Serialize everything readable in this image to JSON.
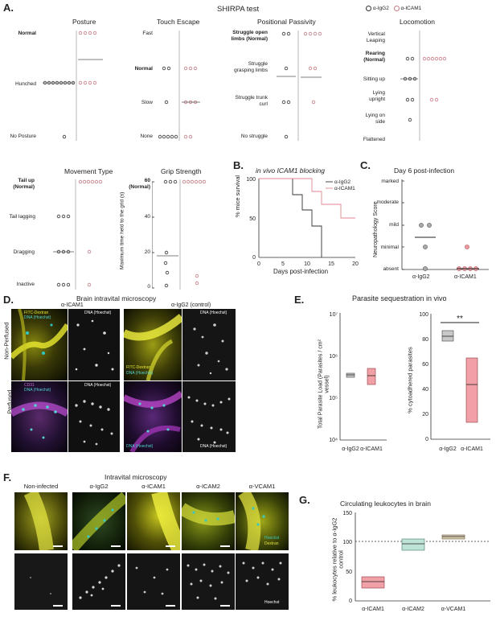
{
  "figure": {
    "panels": {
      "A": {
        "letter": "A.",
        "title": "SHIRPA test",
        "legend": [
          "α-IgG2",
          "α-ICAM1"
        ],
        "subplots": {
          "posture": {
            "title": "Posture",
            "levels": [
              "Normal",
              "Hunched",
              "No Posture"
            ]
          },
          "touch": {
            "title": "Touch Escape",
            "levels": [
              "Fast",
              "Normal",
              "Slow",
              "None"
            ]
          },
          "passivity": {
            "title": "Positional Passivity",
            "levels": [
              "Struggle open limbs (Normal)",
              "Struggle grasping limbs",
              "Struggle trunk curl",
              "No struggle"
            ]
          },
          "locomotion": {
            "title": "Locomotion",
            "levels": [
              "Vertical Leaping",
              "Rearing (Normal)",
              "Sitting up",
              "Lying upright",
              "Lying on side",
              "Flattened"
            ]
          },
          "movement": {
            "title": "Movement Type",
            "levels": [
              "Tail up (Normal)",
              "Tail lagging",
              "Dragging",
              "Inactive"
            ]
          },
          "grip": {
            "title": "Grip Strength",
            "ylabel": "Maximum time held to the grid (s)",
            "ticks": [
              "60 (Normal)",
              "40",
              "20",
              "0"
            ]
          }
        }
      },
      "B": {
        "letter": "B.",
        "title": "in vivo ICAM1 blocking",
        "ylabel": "% mice survival",
        "xlabel": "Days post-infection",
        "legend": [
          "α-IgG2",
          "α-ICAM1"
        ]
      },
      "C": {
        "letter": "C.",
        "title": "Day 6 post-infection",
        "ylabel": "Neuropathology Score",
        "levels": [
          "marked",
          "moderate",
          "mild",
          "minimal",
          "absent"
        ],
        "categories": [
          "α-IgG2",
          "α-ICAM1"
        ]
      },
      "D": {
        "letter": "D.",
        "title": "Brain intravital microscopy",
        "col_labels": [
          "α-ICAM1",
          "α-IgG2 (control)"
        ],
        "row_labels": [
          "Non-Perfused",
          "Perfused"
        ],
        "labels": {
          "fitc": "FITC-Dextran",
          "dna": "DNA (Hoechst)",
          "cd31": "CD31"
        }
      },
      "E": {
        "letter": "E.",
        "title": "Parasite sequestration in vivo",
        "left_ylabel": "Total Parasite Load (Parasites / cm² vessel)",
        "right_ylabel": "% cytoadhered parasites",
        "categories": [
          "α-IgG2",
          "α-ICAM1"
        ],
        "left_ticks": [
          "10⁷",
          "10⁶",
          "10⁵",
          "10⁴"
        ],
        "right_ticks": [
          "100",
          "80",
          "60",
          "40",
          "20",
          "0"
        ],
        "significance": "**"
      },
      "F": {
        "letter": "F.",
        "title": "Intravital microscopy",
        "col_labels": [
          "Non-infected",
          "α-IgG2",
          "α-ICAM1",
          "α-ICAM2",
          "α-VCAM1"
        ],
        "labels": {
          "hoechst": "Hoechst",
          "dextran": "Dextran"
        }
      },
      "G": {
        "letter": "G.",
        "title": "Circulating leukocytes in brain",
        "ylabel": "% leukocytes relative to α-IgG2 control",
        "categories": [
          "α-ICAM1",
          "α-ICAM2",
          "α-VCAM1"
        ],
        "ticks": [
          "150",
          "100",
          "50",
          "0"
        ]
      }
    }
  },
  "chart_data": [
    {
      "type": "scatter",
      "title": "Survival",
      "x": [
        0,
        5,
        10,
        15,
        20
      ],
      "series": [
        {
          "name": "α-IgG2",
          "steps": [
            [
              0,
              100
            ],
            [
              7,
              100
            ],
            [
              7,
              80
            ],
            [
              9,
              80
            ],
            [
              9,
              60
            ],
            [
              11,
              60
            ],
            [
              11,
              40
            ],
            [
              13,
              40
            ],
            [
              13,
              0
            ]
          ]
        },
        {
          "name": "α-ICAM1",
          "steps": [
            [
              0,
              100
            ],
            [
              11,
              100
            ],
            [
              11,
              83
            ],
            [
              13,
              83
            ],
            [
              13,
              67
            ],
            [
              17,
              67
            ],
            [
              17,
              50
            ],
            [
              20,
              50
            ]
          ]
        }
      ],
      "xlabel": "Days post-infection",
      "ylabel": "% mice survival",
      "xlim": [
        0,
        20
      ],
      "ylim": [
        0,
        100
      ]
    },
    {
      "type": "bar",
      "title": "Circulating leukocytes in brain",
      "categories": [
        "α-ICAM1",
        "α-ICAM2",
        "α-VCAM1"
      ],
      "values": [
        32,
        92,
        104
      ],
      "ylim": [
        0,
        150
      ]
    }
  ]
}
